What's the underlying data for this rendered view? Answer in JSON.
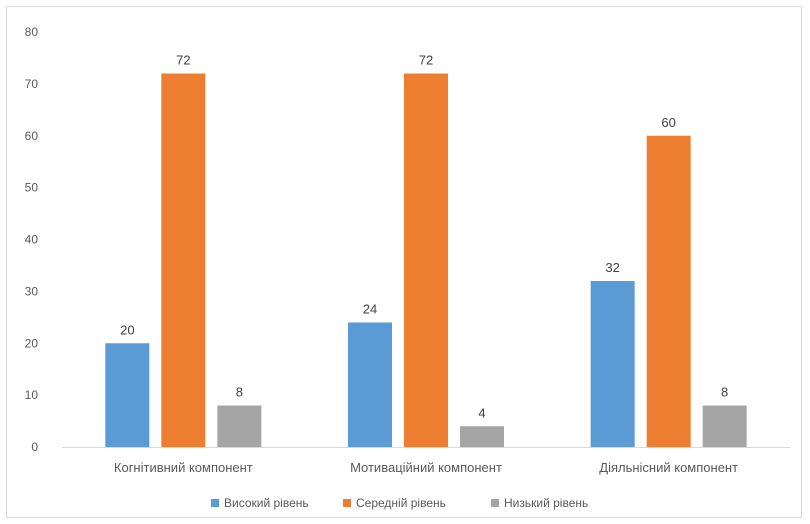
{
  "chart_data": {
    "type": "bar",
    "categories": [
      "Когнітивний компонент",
      "Мотиваційний компонент",
      "Діяльнісний компонент"
    ],
    "series": [
      {
        "name": "Високий рівень",
        "values": [
          20,
          24,
          32
        ],
        "color": "#5b9bd5"
      },
      {
        "name": "Середній рівень",
        "values": [
          72,
          72,
          60
        ],
        "color": "#ed7d31"
      },
      {
        "name": "Низький рівень",
        "values": [
          8,
          4,
          8
        ],
        "color": "#a5a5a5"
      }
    ],
    "ylim": [
      0,
      80
    ],
    "yticks": [
      0,
      10,
      20,
      30,
      40,
      50,
      60,
      70,
      80
    ],
    "grid": false,
    "legend": "bottom"
  }
}
